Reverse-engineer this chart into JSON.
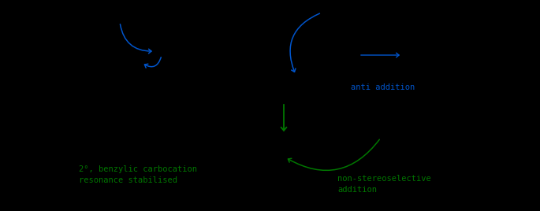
{
  "bg_color": "#000000",
  "blue_color": "#0055cc",
  "green_color": "#007700",
  "fig_width": 6.85,
  "fig_height": 2.68,
  "text_anti_addition": "anti addition",
  "text_carbocation": "2°, benzylic carbocation\nresonance stabilised",
  "text_non_stereo": "non-stereoselective\naddition",
  "font_size": 7.5,
  "dpi": 100
}
